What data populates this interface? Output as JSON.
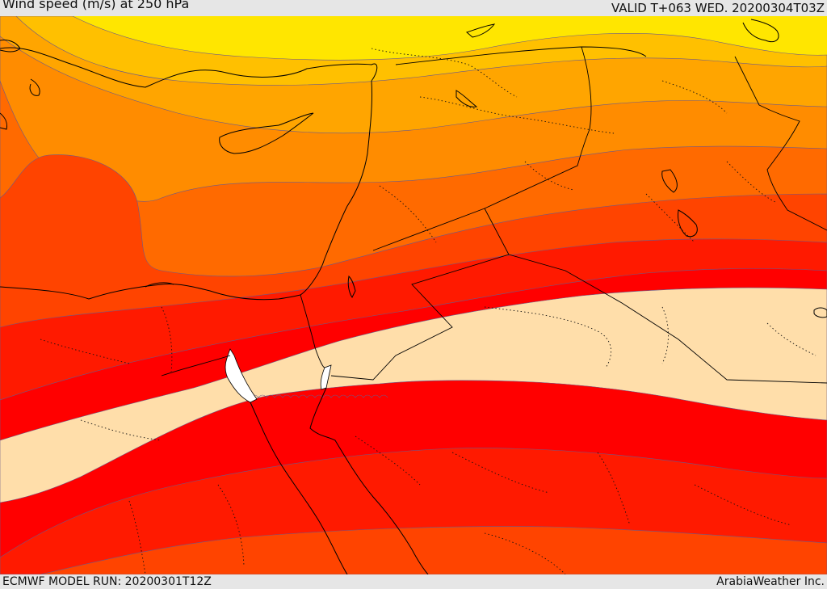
{
  "header": {
    "title": "Wind speed (m/s) at 250 hPa",
    "valid_time": "VALID T+063 WED. 20200304T03Z"
  },
  "footer": {
    "model_run": "ECMWF MODEL RUN: 20200301T12Z",
    "credit": "ArabiaWeather Inc."
  },
  "colors": {
    "band_yellow": "#ffe600",
    "band_gold": "#ffc000",
    "band_amber": "#ffa500",
    "band_orange": "#ff8c00",
    "band_orange_red": "#ff6a00",
    "band_red_orange": "#ff4400",
    "band_red": "#ff1a00",
    "band_pure_red": "#ff0000",
    "band_core": "#ffdeaa",
    "land_white": "#ffffff",
    "border": "#000000"
  }
}
